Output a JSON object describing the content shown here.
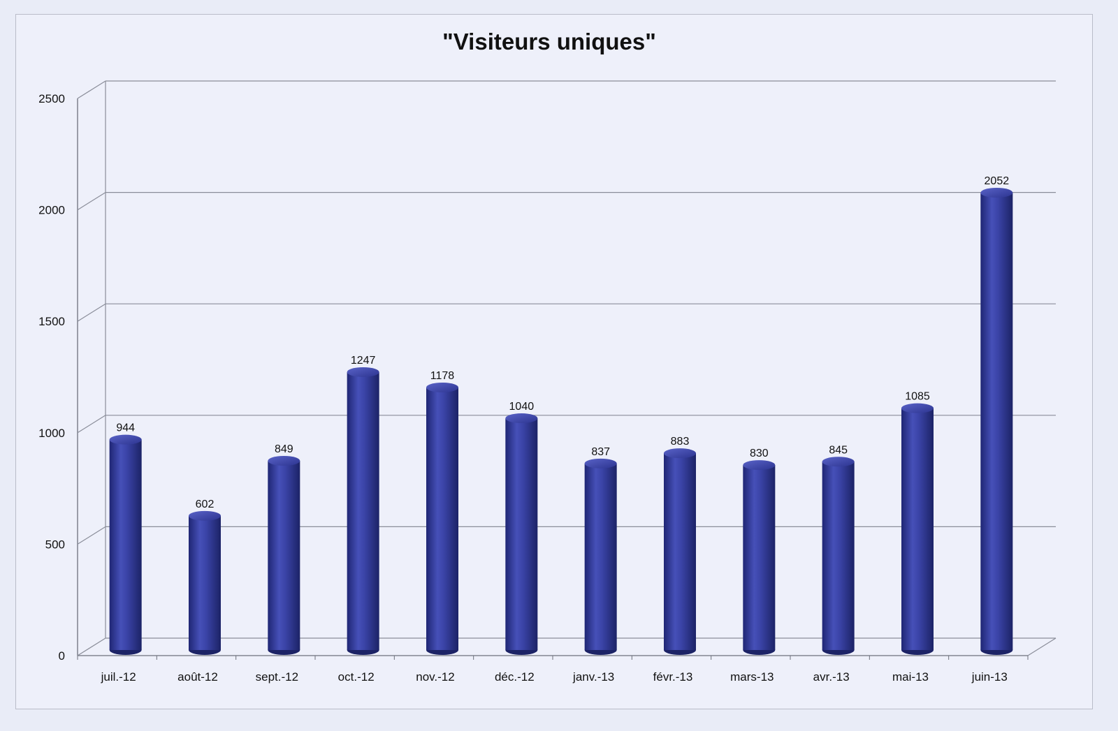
{
  "chart_data": {
    "type": "bar",
    "title": "\"Visiteurs uniques\"",
    "xlabel": "",
    "ylabel": "",
    "categories": [
      "juil.-12",
      "août-12",
      "sept.-12",
      "oct.-12",
      "nov.-12",
      "déc.-12",
      "janv.-13",
      "févr.-13",
      "mars-13",
      "avr.-13",
      "mai-13",
      "juin-13"
    ],
    "values": [
      944,
      602,
      849,
      1247,
      1178,
      1040,
      837,
      883,
      830,
      845,
      1085,
      2052
    ],
    "ylim": [
      0,
      2500
    ],
    "yticks": [
      "0",
      "500",
      "1000",
      "1500",
      "2000",
      "2500"
    ],
    "grid": true,
    "style": "3d-cylinder",
    "colors": {
      "bar": "#3a43a6",
      "bar_dark": "#1f2674",
      "bar_light": "#6f78d4"
    }
  }
}
